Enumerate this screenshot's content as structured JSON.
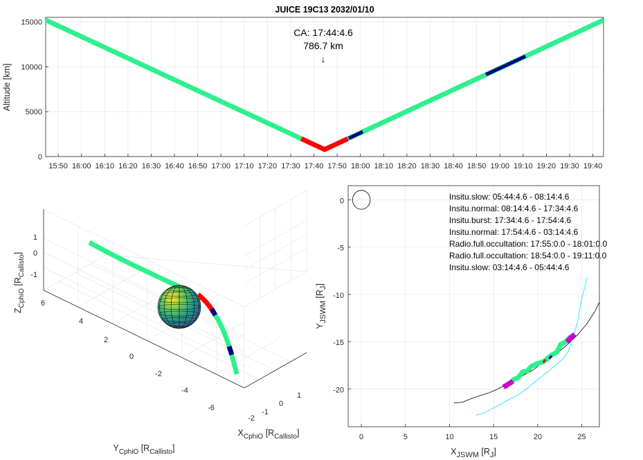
{
  "chart_data": [
    {
      "type": "line",
      "title": "JUICE 19C13 2032/01/10",
      "ylabel": "Altitude [km]",
      "xlabel": "",
      "ylim": [
        0,
        15500
      ],
      "yticks": [
        0,
        5000,
        10000,
        15000
      ],
      "xticks": [
        "15:50",
        "16:00",
        "16:10",
        "16:20",
        "16:30",
        "16:40",
        "16:50",
        "17:00",
        "17:10",
        "17:20",
        "17:30",
        "17:40",
        "17:50",
        "18:00",
        "18:10",
        "18:20",
        "18:30",
        "18:40",
        "18:50",
        "19:00",
        "19:10",
        "19:20",
        "19:30",
        "19:40"
      ],
      "xlim_minutes": [
        944.6,
        1184.6
      ],
      "ca_minute": 1064.6,
      "ca_altitude_km": 786.7,
      "slope_km_per_min": 120.1,
      "annotation": [
        "CA: 17:44:4.6",
        "786.7 km"
      ],
      "annotation_arrow": "↓",
      "segments": [
        {
          "mode": "normal",
          "color": "#2ef08c",
          "from": 944.6,
          "to": 1054.6
        },
        {
          "mode": "burst",
          "color": "#ff0000",
          "from": 1054.6,
          "to": 1074.6
        },
        {
          "mode": "normal",
          "color": "#2ef08c",
          "from": 1074.6,
          "to": 1184.6
        },
        {
          "mode": "occultation",
          "color": "#000080",
          "from": 1075.0,
          "to": 1081.0
        },
        {
          "mode": "occultation",
          "color": "#000080",
          "from": 1134.0,
          "to": 1151.0
        }
      ],
      "grid": true
    },
    {
      "type": "line",
      "projection": "3d",
      "xlabel_base": "X",
      "xlabel_sub": "CphiO",
      "xlabel_unit": "R",
      "xlabel_unit_sub": "Callisto",
      "ylabel_base": "Y",
      "ylabel_sub": "CphiO",
      "ylabel_unit": "R",
      "ylabel_unit_sub": "Callisto",
      "zlabel_base": "Z",
      "zlabel_sub": "CphiO",
      "zlabel_unit": "R",
      "zlabel_unit_sub": "Callisto",
      "xticks": [
        "-2",
        "-1",
        "0",
        "1"
      ],
      "yticks": [
        "6",
        "4",
        "2",
        "0",
        "-2",
        "-4",
        "-6"
      ],
      "zticks": [
        "1",
        "0",
        "-1"
      ],
      "trajectory_colors": [
        "#2ef08c",
        "#ff0000",
        "#000080"
      ],
      "body": "Callisto sphere"
    },
    {
      "type": "line",
      "xlabel_base": "X",
      "xlabel_sub": "JSWM",
      "xlabel_unit": "R",
      "xlabel_unit_sub": "J",
      "ylabel_base": "Y",
      "ylabel_sub": "JSWM",
      "ylabel_unit": "R",
      "ylabel_unit_sub": "J",
      "xlim": [
        -1.5,
        27
      ],
      "ylim": [
        -24,
        1.5
      ],
      "xticks": [
        0,
        5,
        10,
        15,
        20,
        25
      ],
      "yticks": [
        0,
        -5,
        -10,
        -15,
        -20
      ],
      "grid": true,
      "legend": [
        "Insitu.slow: 05:44:4.6 - 08:14:4.6",
        "Insitu.normal: 08:14:4.6 - 17:34:4.6",
        "Insitu.burst: 17:34:4.6 - 17:54:4.6",
        "Insitu.normal: 17:54:4.6 - 03:14:4.6",
        "Radio.full.occultation: 17:55:0.0 - 18:01:0.0",
        "Radio.full.occultation: 18:54:0.0 - 19:11:0.0",
        "Insitu.slow: 03:14:4.6 - 05:44:4.6"
      ],
      "legend_position": "top-right",
      "series": [
        {
          "color": "#000000",
          "x": [
            10.5,
            11.5,
            12.5,
            13.5,
            14.5,
            15.5,
            16.5,
            17.5,
            18.5,
            19.5,
            20.5,
            21.5,
            22.5,
            23.5,
            24.5,
            25.5,
            26.5,
            27.0
          ],
          "y": [
            -21.5,
            -21.4,
            -21.0,
            -20.7,
            -20.4,
            -20.0,
            -19.5,
            -19.0,
            -18.5,
            -18.0,
            -17.2,
            -16.7,
            -16.0,
            -15.2,
            -14.3,
            -13.2,
            -11.8,
            -10.8
          ]
        },
        {
          "color": "#00e5ff",
          "x": [
            13.0,
            14.0,
            15.0,
            16.0,
            17.0,
            18.0,
            19.0,
            20.0,
            21.0,
            22.0,
            23.0,
            23.5,
            24.0,
            24.5,
            25.0,
            25.6
          ],
          "y": [
            -22.8,
            -22.5,
            -22.0,
            -21.5,
            -21.0,
            -20.5,
            -19.8,
            -19.0,
            -18.3,
            -17.5,
            -16.7,
            -16.0,
            -14.5,
            -13.0,
            -10.5,
            -8.2
          ]
        },
        {
          "color": "#2ef08c",
          "x": [
            16.3,
            17.3,
            17.8,
            18.3,
            18.8,
            19.3,
            20.0,
            20.7,
            21.2,
            21.6,
            22.2,
            22.6,
            23.2,
            23.8
          ],
          "y": [
            -19.8,
            -19.0,
            -18.8,
            -18.2,
            -18.1,
            -17.6,
            -17.3,
            -17.1,
            -16.7,
            -16.4,
            -16.1,
            -15.3,
            -15.0,
            -14.4
          ]
        },
        {
          "color": "#cc00cc",
          "x": [
            16.1,
            17.2
          ],
          "y": [
            -19.8,
            -19.2
          ]
        },
        {
          "color": "#cc00cc",
          "x": [
            23.3,
            24.2
          ],
          "y": [
            -15.0,
            -14.2
          ]
        },
        {
          "color": "#ff0000",
          "x": [
            20.6,
            20.9
          ],
          "y": [
            -17.2,
            -16.9
          ]
        },
        {
          "color": "#000080",
          "x": [
            21.3,
            21.6
          ],
          "y": [
            -16.8,
            -16.5
          ]
        }
      ],
      "body": "Jupiter circle at origin"
    }
  ]
}
